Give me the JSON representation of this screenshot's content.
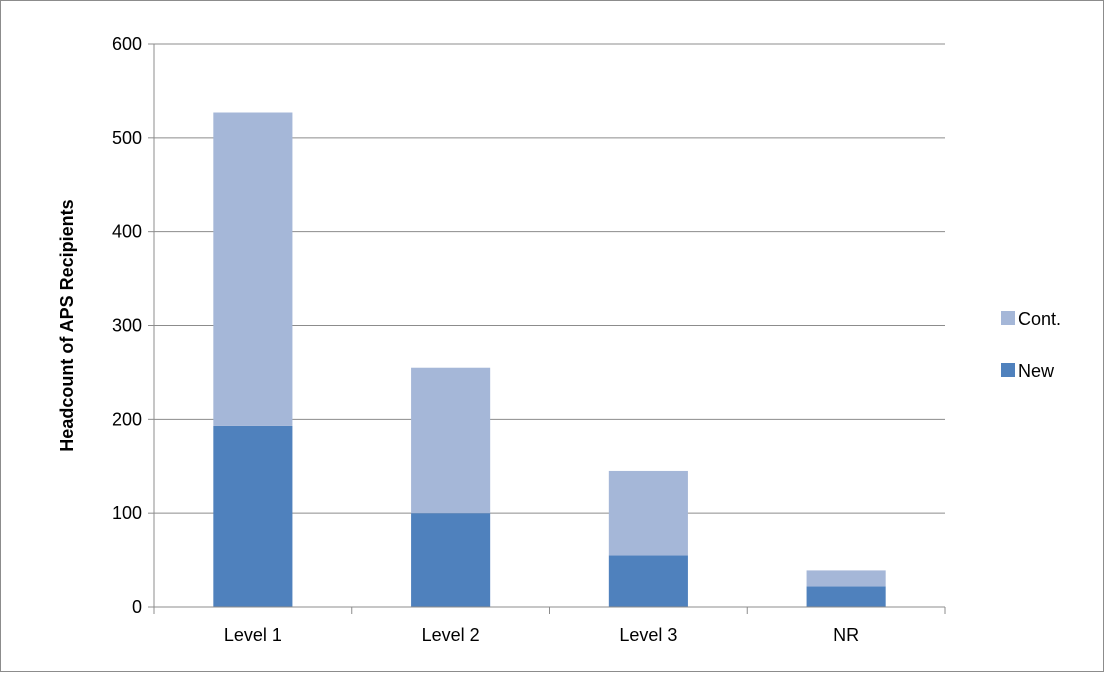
{
  "chart_data": {
    "type": "bar",
    "stacked": true,
    "categories": [
      "Level 1",
      "Level 2",
      "Level 3",
      "NR"
    ],
    "series": [
      {
        "name": "New",
        "values": [
          193,
          100,
          55,
          22
        ],
        "color": "#4f81bd"
      },
      {
        "name": "Cont.",
        "values": [
          334,
          155,
          90,
          17
        ],
        "color": "#a5b7d8"
      }
    ],
    "ylabel": "Headcount of APS Recipients",
    "xlabel": "",
    "ylim": [
      0,
      600
    ],
    "yticks": [
      0,
      100,
      200,
      300,
      400,
      500,
      600
    ],
    "grid": true,
    "legend_position": "right",
    "legend_order": [
      "Cont.",
      "New"
    ]
  }
}
